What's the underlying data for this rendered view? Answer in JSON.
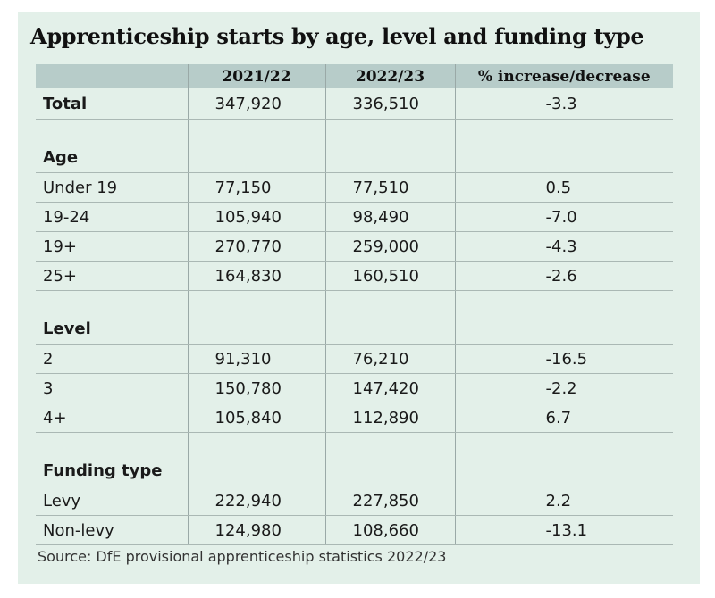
{
  "title": "Apprenticeship starts by age, level and funding type",
  "headers": [
    "",
    "2021/22",
    "2022/23",
    "% increase/decrease"
  ],
  "total": {
    "label": "Total",
    "y2021": "347,920",
    "y2022": "336,510",
    "pct": "-3.3"
  },
  "sections": [
    {
      "heading": "Age",
      "rows": [
        {
          "label": "Under 19",
          "y2021": "77,150",
          "y2022": "77,510",
          "pct": "0.5"
        },
        {
          "label": "19-24",
          "y2021": "105,940",
          "y2022": "98,490",
          "pct": "-7.0"
        },
        {
          "label": "19+",
          "y2021": "270,770",
          "y2022": "259,000",
          "pct": "-4.3"
        },
        {
          "label": "25+",
          "y2021": "164,830",
          "y2022": "160,510",
          "pct": "-2.6"
        }
      ]
    },
    {
      "heading": "Level",
      "rows": [
        {
          "label": "2",
          "y2021": "91,310",
          "y2022": "76,210",
          "pct": "-16.5"
        },
        {
          "label": "3",
          "y2021": "150,780",
          "y2022": "147,420",
          "pct": "-2.2"
        },
        {
          "label": "4+",
          "y2021": "105,840",
          "y2022": "112,890",
          "pct": "6.7"
        }
      ]
    },
    {
      "heading": "Funding type",
      "rows": [
        {
          "label": "Levy",
          "y2021": "222,940",
          "y2022": "227,850",
          "pct": "2.2"
        },
        {
          "label": "Non-levy",
          "y2021": "124,980",
          "y2022": "108,660",
          "pct": "-13.1"
        }
      ]
    }
  ],
  "source": "Source: DfE provisional apprenticeship statistics 2022/23"
}
